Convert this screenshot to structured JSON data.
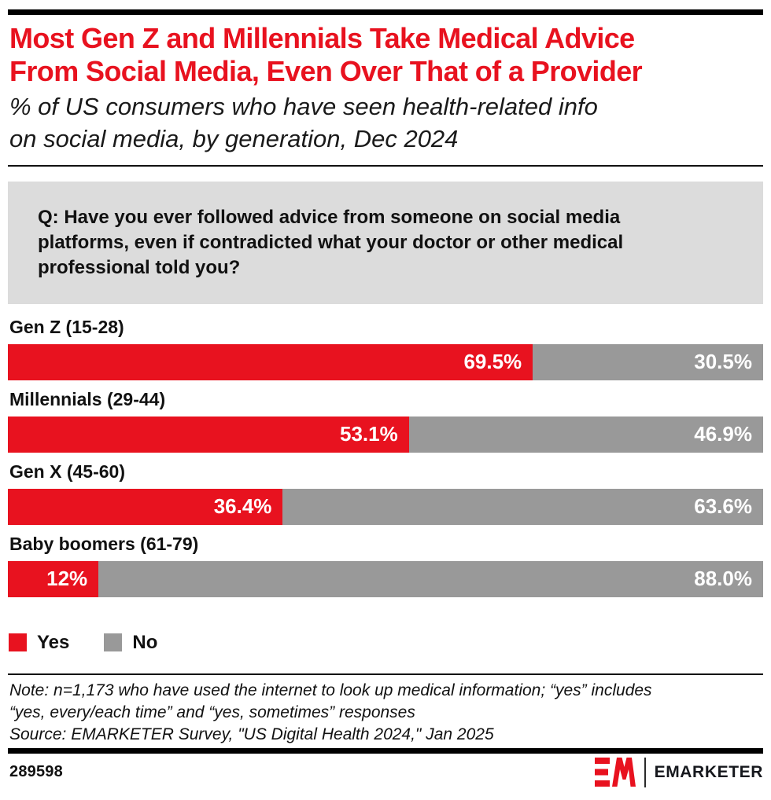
{
  "colors": {
    "accent_red": "#e8121f",
    "bar_gray": "#999999",
    "question_bg": "#dcdcdc",
    "rule_black": "#000000"
  },
  "header": {
    "title_lines": [
      "Most Gen Z and Millennials Take Medical Advice",
      "From Social Media, Even Over That of a Provider"
    ],
    "subtitle_lines": [
      "% of US consumers who have seen health-related info",
      "on social media, by generation, Dec 2024"
    ]
  },
  "question": "Q: Have you ever followed advice from someone on social media platforms, even if contradicted what your doctor or other medical professional told you?",
  "chart_data": {
    "type": "bar",
    "orientation": "horizontal",
    "stacked": true,
    "unit": "%",
    "xlim": [
      0,
      100
    ],
    "grid": false,
    "categories": [
      "Gen Z (15-28)",
      "Millennials (29-44)",
      "Gen X (45-60)",
      "Baby boomers (61-79)"
    ],
    "series": [
      {
        "name": "Yes",
        "color": "#e8121f",
        "values": [
          69.5,
          53.1,
          36.4,
          12
        ]
      },
      {
        "name": "No",
        "color": "#999999",
        "values": [
          30.5,
          46.9,
          63.6,
          88.0
        ]
      }
    ],
    "rows": [
      {
        "label": "Gen Z (15-28)",
        "yes": 69.5,
        "no": 30.5,
        "yes_label": "69.5%",
        "no_label": "30.5%"
      },
      {
        "label": "Millennials (29-44)",
        "yes": 53.1,
        "no": 46.9,
        "yes_label": "53.1%",
        "no_label": "46.9%"
      },
      {
        "label": "Gen X (45-60)",
        "yes": 36.4,
        "no": 63.6,
        "yes_label": "36.4%",
        "no_label": "63.6%"
      },
      {
        "label": "Baby boomers (61-79)",
        "yes": 12,
        "no": 88.0,
        "yes_label": "12%",
        "no_label": "88.0%"
      }
    ],
    "legend": {
      "position": "bottom-left",
      "items": [
        {
          "label": "Yes",
          "color": "#e8121f"
        },
        {
          "label": "No",
          "color": "#999999"
        }
      ]
    }
  },
  "footnote": {
    "note_lines": [
      "Note: n=1,173 who have used the internet to look up medical information; “yes” includes",
      "“yes, every/each time” and “yes, sometimes” responses"
    ],
    "source_line": "Source: EMARKETER Survey, \"US Digital Health 2024,\" Jan 2025"
  },
  "footer": {
    "chart_id": "289598",
    "brand": "EMARKETER"
  }
}
